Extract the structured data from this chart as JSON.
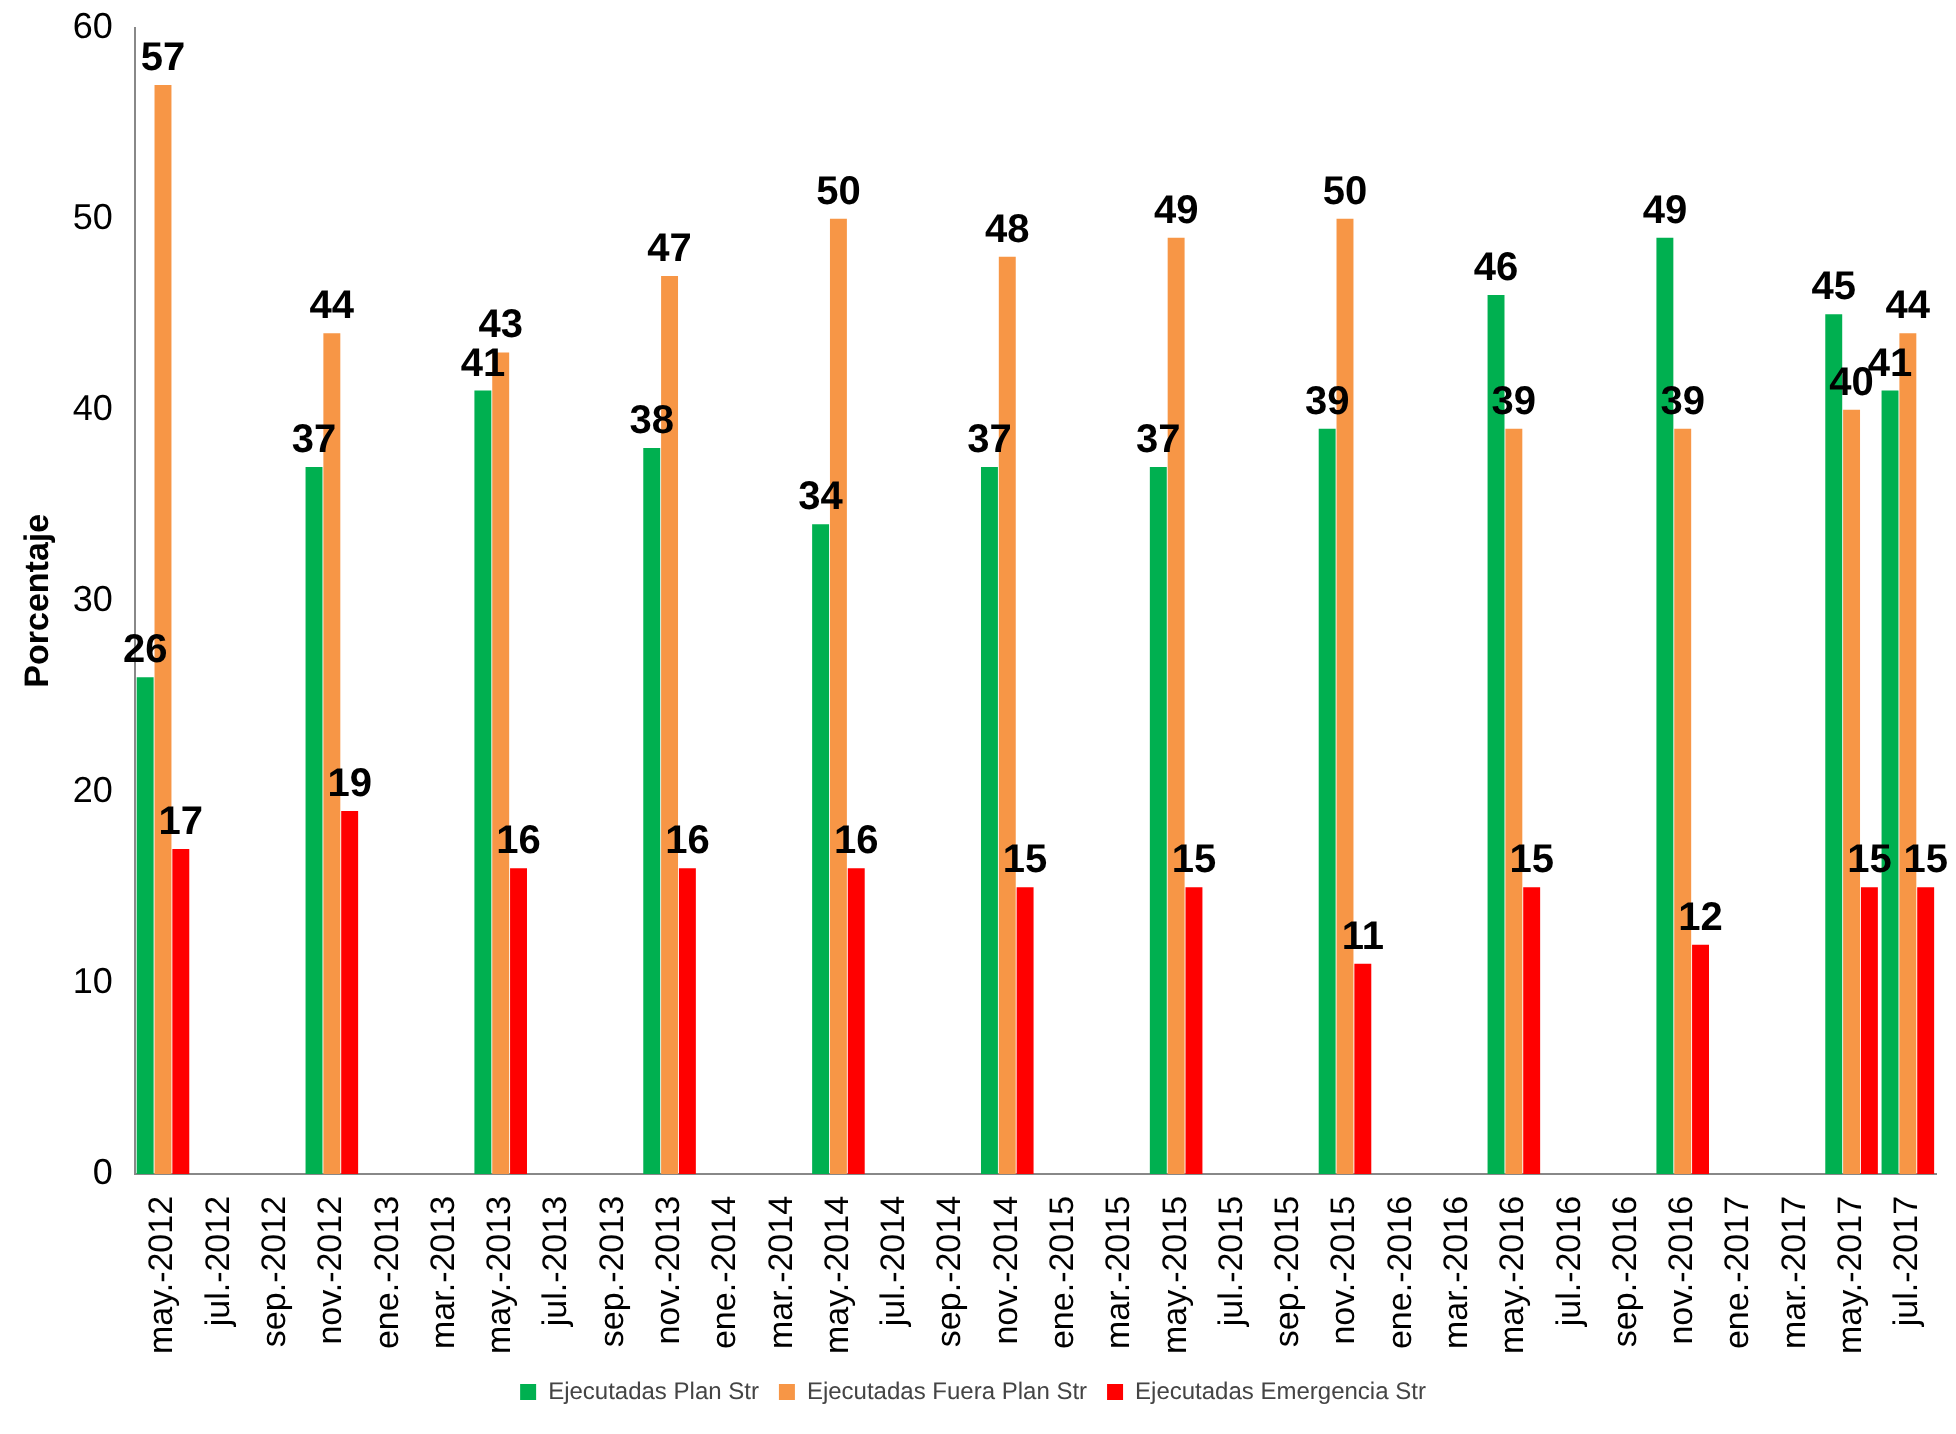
{
  "chart_data": {
    "type": "bar",
    "ylabel": "Porcentaje",
    "categories": [
      "may.-2012",
      "jul.-2012",
      "sep.-2012",
      "nov.-2012",
      "ene.-2013",
      "mar.-2013",
      "may.-2013",
      "jul.-2013",
      "sep.-2013",
      "nov.-2013",
      "ene.-2014",
      "mar.-2014",
      "may.-2014",
      "jul.-2014",
      "sep.-2014",
      "nov.-2014",
      "ene.-2015",
      "mar.-2015",
      "may.-2015",
      "jul.-2015",
      "sep.-2015",
      "nov.-2015",
      "ene.-2016",
      "mar.-2016",
      "may.-2016",
      "jul.-2016",
      "sep.-2016",
      "nov.-2016",
      "ene.-2017",
      "mar.-2017",
      "may.-2017",
      "jul.-2017"
    ],
    "series": [
      {
        "name": "Ejecutadas Plan Str",
        "color": "#00b050",
        "values": [
          26,
          null,
          null,
          37,
          null,
          null,
          41,
          null,
          null,
          38,
          null,
          null,
          34,
          null,
          null,
          37,
          null,
          null,
          37,
          null,
          null,
          39,
          null,
          null,
          46,
          null,
          null,
          49,
          null,
          null,
          45,
          41
        ]
      },
      {
        "name": "Ejecutadas Fuera Plan Str",
        "color": "#f79646",
        "values": [
          57,
          null,
          null,
          44,
          null,
          null,
          43,
          null,
          null,
          47,
          null,
          null,
          50,
          null,
          null,
          48,
          null,
          null,
          49,
          null,
          null,
          50,
          null,
          null,
          39,
          null,
          null,
          39,
          null,
          null,
          40,
          44
        ]
      },
      {
        "name": "Ejecutadas Emergencia Str",
        "color": "#ff0000",
        "values": [
          17,
          null,
          null,
          19,
          null,
          null,
          16,
          null,
          null,
          16,
          null,
          null,
          16,
          null,
          null,
          15,
          null,
          null,
          15,
          null,
          null,
          11,
          null,
          null,
          15,
          null,
          null,
          12,
          null,
          null,
          15,
          15
        ]
      }
    ],
    "ylim": [
      0,
      60
    ],
    "yticks": [
      0,
      10,
      20,
      30,
      40,
      50,
      60
    ],
    "grid": false,
    "legend": "bottom",
    "data_labels": true
  }
}
